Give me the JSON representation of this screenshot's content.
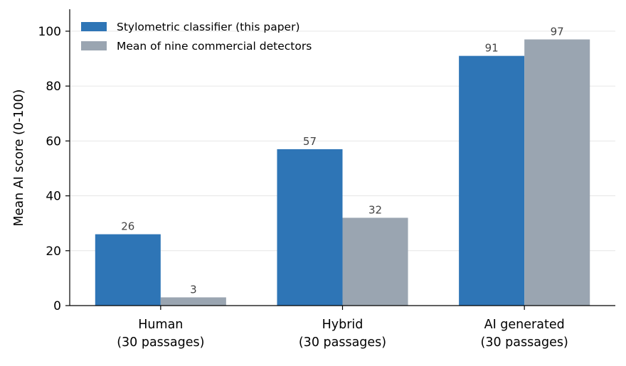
{
  "chart_data": {
    "type": "bar",
    "title": "",
    "xlabel": "",
    "ylabel": "Mean AI score (0-100)",
    "ylim": [
      0,
      108
    ],
    "yticks": [
      0,
      20,
      40,
      60,
      80,
      100
    ],
    "grid": "horizontal",
    "legend": "top-left",
    "categories": [
      [
        "Human",
        "(30 passages)"
      ],
      [
        "Hybrid",
        "(30 passages)"
      ],
      [
        "AI generated",
        "(30 passages)"
      ]
    ],
    "series": [
      {
        "name": "Stylometric classifier (this paper)",
        "color": "#2e75b6",
        "values": [
          26,
          57,
          91
        ],
        "labels": [
          "26",
          "57",
          "91"
        ]
      },
      {
        "name": "Mean of nine commercial detectors",
        "color": "#9aa5b1",
        "values": [
          3,
          32,
          97
        ],
        "labels": [
          "3",
          "32",
          "97"
        ]
      }
    ]
  }
}
